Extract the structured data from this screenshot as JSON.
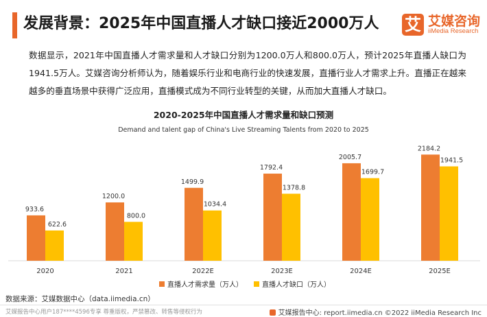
{
  "header": {
    "title": "发展背景：2025年中国直播人才缺口接近2000万人",
    "brand_mark": "艾",
    "brand_name_cn": "艾媒咨询",
    "brand_name_en": "iiMedia Research"
  },
  "intro": {
    "text": "数据显示，2021年中国直播人才需求量和人才缺口分别为1200.0万人和800.0万人，预计2025年直播人缺口为1941.5万人。艾媒咨询分析师认为，随着娱乐行业和电商行业的快速发展，直播行业人才需求上升。直播正在越来越多的垂直场景中获得广泛应用，直播模式成为不同行业转型的关键，从而加大直播人才缺口。"
  },
  "chart_data": {
    "type": "bar",
    "title": "2020-2025年中国直播人才需求量和缺口预测",
    "subtitle": "Demand and talent gap of China's Live Streaming Talents from 2020 to 2025",
    "categories": [
      "2020",
      "2021",
      "2022E",
      "2023E",
      "2024E",
      "2025E"
    ],
    "series": [
      {
        "name": "直播人才需求量（万人）",
        "color": "#ed7d31",
        "values": [
          933.6,
          1200.0,
          1499.9,
          1792.4,
          2005.7,
          2184.2
        ],
        "labels": [
          "933.6",
          "1200.0",
          "1499.9",
          "1792.4",
          "2005.7",
          "2184.2"
        ]
      },
      {
        "name": "直播人才缺口（万人）",
        "color": "#ffc000",
        "values": [
          622.6,
          800.0,
          1034.4,
          1378.8,
          1699.7,
          1941.5
        ],
        "labels": [
          "622.6",
          "800.0",
          "1034.4",
          "1378.8",
          "1699.7",
          "1941.5"
        ]
      }
    ],
    "ylim": [
      0,
      2400
    ],
    "grid": false,
    "legend_position": "bottom"
  },
  "source": {
    "text": "数据来源：艾媒数据中心（data.iimedia.cn）"
  },
  "footer": {
    "left": "艾媒报告中心用户187****4596专享 尊重版权，严禁篡改、转售等侵权行为",
    "right": "艾媒报告中心: report.iimedia.cn ©2022 iiMedia Research Inc"
  }
}
